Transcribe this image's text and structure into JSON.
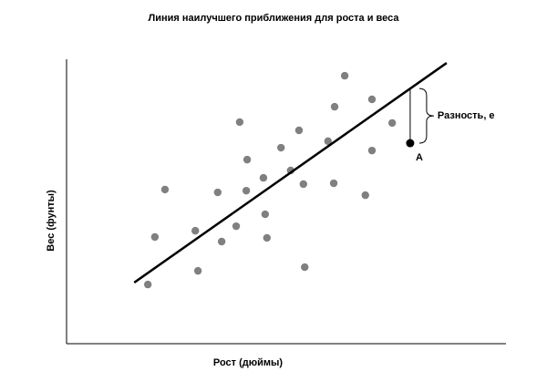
{
  "chart_data": {
    "type": "scatter",
    "title": "Линия наилучшего приближения для роста и веса",
    "xlabel": "Рост (дюймы)",
    "ylabel": "Вес (фунты)",
    "xlim": [
      0,
      100
    ],
    "ylim": [
      0,
      100
    ],
    "x": [
      18.5,
      20.1,
      22.4,
      29.3,
      29.9,
      34.4,
      35.3,
      38.6,
      39.4,
      40.9,
      41.1,
      44.8,
      45.2,
      45.6,
      48.8,
      51.0,
      52.9,
      53.9,
      54.2,
      59.5,
      60.8,
      61.0,
      63.3,
      68.0,
      69.5,
      69.5,
      74.1
    ],
    "values": [
      20.8,
      37.5,
      54.2,
      39.7,
      25.6,
      53.2,
      35.9,
      41.3,
      77.9,
      53.8,
      64.7,
      58.3,
      45.5,
      37.2,
      68.9,
      60.9,
      75.0,
      56.1,
      26.9,
      71.2,
      56.4,
      83.3,
      94.2,
      52.2,
      85.9,
      67.9,
      77.6
    ],
    "color": "#808080",
    "point_a": {
      "label": "A",
      "x": 78.2,
      "y": 70.5,
      "color": "#000000"
    },
    "fit_line": {
      "x": [
        15.4,
        86.5
      ],
      "y": [
        21.5,
        98.7
      ],
      "color": "#000000"
    },
    "residual_label": "Разность, e"
  }
}
